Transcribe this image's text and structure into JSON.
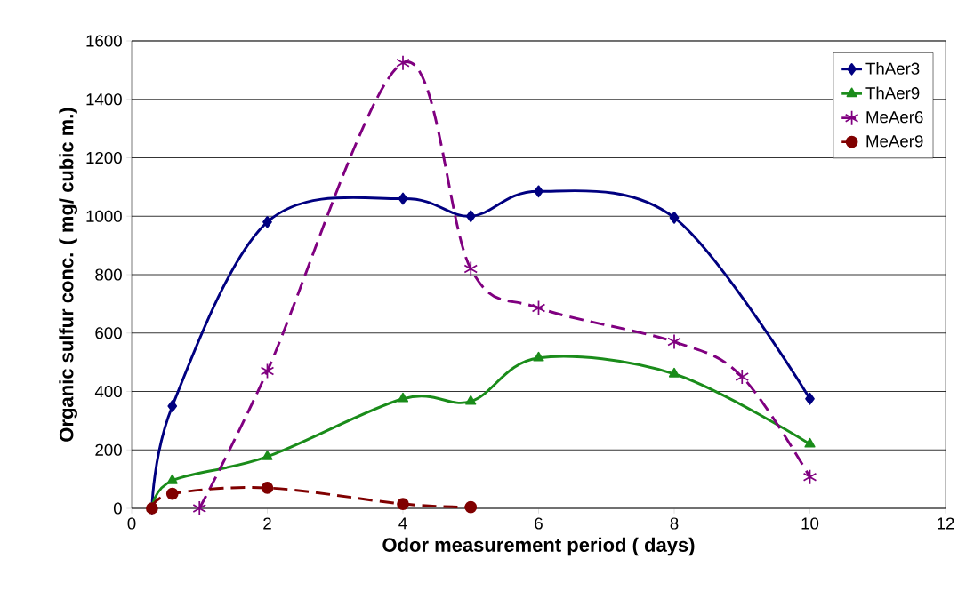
{
  "chart_data": {
    "type": "line",
    "xlabel": "Odor measurement period ( days)",
    "ylabel": "Organic sulfur conc. ( mg/ cubic m.)",
    "xlim": [
      0,
      12
    ],
    "xticks": [
      0,
      2,
      4,
      6,
      8,
      10,
      12
    ],
    "ylim": [
      0,
      1600
    ],
    "yticks": [
      0,
      200,
      400,
      600,
      800,
      1000,
      1200,
      1400,
      1600
    ],
    "grid": "y",
    "legend": "top right",
    "series": [
      {
        "name": "ThAer3",
        "color": "#000080",
        "marker": "diamond",
        "line_style": "solid",
        "x": [
          0.3,
          0.6,
          2,
          4,
          5,
          6,
          8,
          10
        ],
        "values": [
          0,
          350,
          980,
          1060,
          1000,
          1085,
          995,
          375
        ]
      },
      {
        "name": "ThAer9",
        "color": "#1a8c1a",
        "marker": "triangle",
        "line_style": "solid",
        "x": [
          0.3,
          0.6,
          2,
          4,
          5,
          6,
          8,
          10
        ],
        "values": [
          0,
          95,
          177,
          375,
          366,
          515,
          460,
          220
        ]
      },
      {
        "name": "MeAer6",
        "color": "#800080",
        "marker": "cross",
        "line_style": "dashed",
        "x": [
          1,
          2,
          4,
          5,
          6,
          8,
          9,
          10
        ],
        "values": [
          0,
          470,
          1525,
          820,
          686,
          570,
          450,
          107
        ]
      },
      {
        "name": "MeAer9",
        "color": "#800000",
        "marker": "circle",
        "line_style": "dashed",
        "x": [
          0.3,
          0.6,
          2,
          4,
          5
        ],
        "values": [
          0,
          50,
          70,
          15,
          4
        ]
      }
    ]
  }
}
